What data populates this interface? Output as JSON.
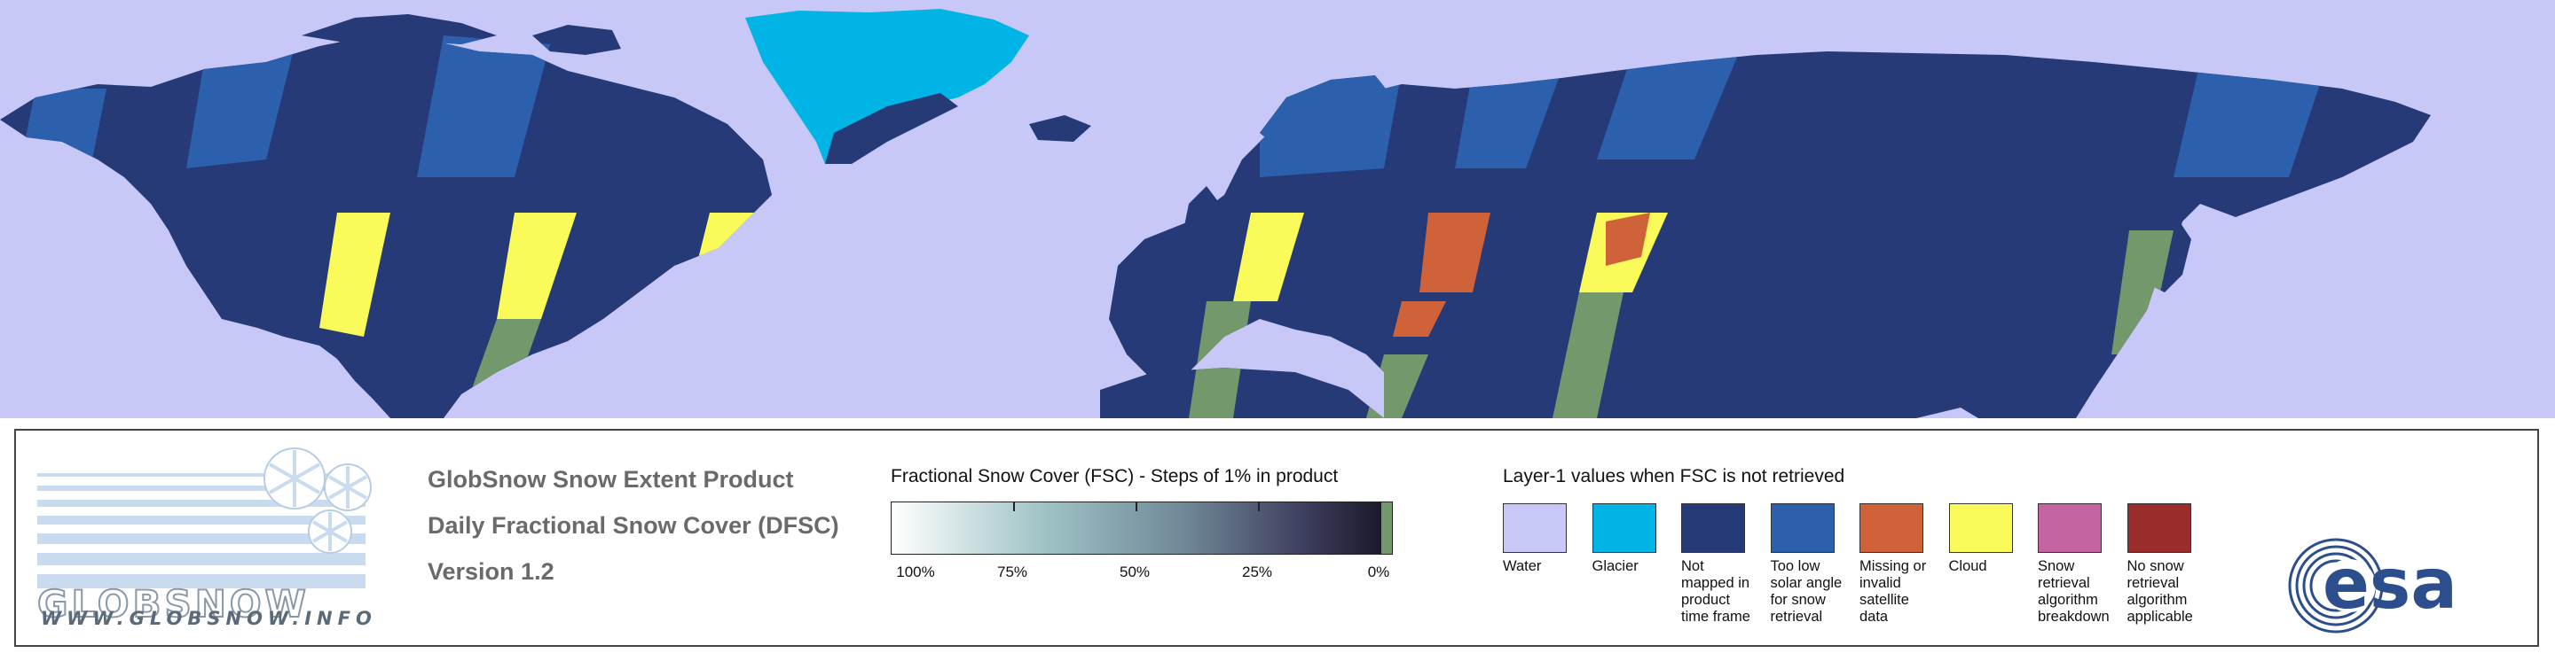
{
  "colors": {
    "water": "#c8c8f8",
    "glacier": "#00b4e6",
    "not_mapped": "#263a78",
    "low_solar_angle": "#2c5fac",
    "missing": "#d0623a",
    "cloud": "#fafa5a",
    "algorithm_breakdown": "#c464a0",
    "not_applicable": "#9a2c2c",
    "snow_free": "#72986c"
  },
  "map": {
    "description_icon": "world-map"
  },
  "logo": {
    "icon": "globsnow-logo",
    "url_text": "WWW.GLOBSNOW.INFO"
  },
  "titles": {
    "line1": "GlobSnow Snow Extent Product",
    "line2": "Daily Fractional Snow Cover (DFSC)",
    "line3": "Version 1.2"
  },
  "fsc_legend": {
    "title": "Fractional Snow Cover (FSC) - Steps of 1% in product",
    "labels": [
      "100%",
      "75%",
      "50%",
      "25%",
      "0%"
    ]
  },
  "layer1_legend": {
    "title": "Layer-1 values when FSC is not retrieved",
    "items": [
      {
        "label_lines": [
          "Water"
        ],
        "color": "#c8c8f8"
      },
      {
        "label_lines": [
          "Glacier"
        ],
        "color": "#00b4e6"
      },
      {
        "label_lines": [
          "Not",
          "mapped in",
          "product",
          "time frame"
        ],
        "color": "#263a78"
      },
      {
        "label_lines": [
          "Too low",
          "solar angle",
          "for snow",
          "retrieval"
        ],
        "color": "#2c5fac"
      },
      {
        "label_lines": [
          "Missing or",
          "invalid satellite",
          "data"
        ],
        "color": "#d0623a"
      },
      {
        "label_lines": [
          "Cloud"
        ],
        "color": "#fafa5a"
      },
      {
        "label_lines": [
          "Snow retrieval",
          "algorithm",
          "breakdown"
        ],
        "color": "#c464a0"
      },
      {
        "label_lines": [
          "No snow",
          "retrieval",
          "algorithm",
          "applicable"
        ],
        "color": "#9a2c2c"
      }
    ]
  },
  "esa_logo": {
    "icon": "esa-logo",
    "text": "esa"
  }
}
